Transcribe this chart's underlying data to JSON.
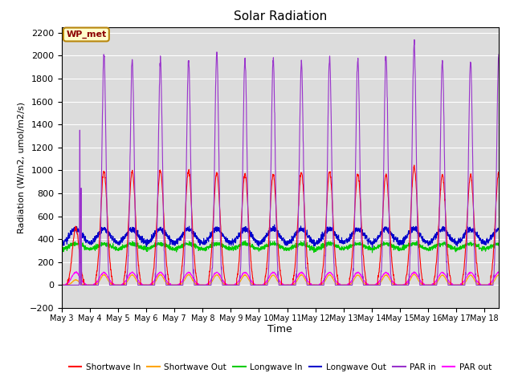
{
  "title": "Solar Radiation",
  "xlabel": "Time",
  "ylabel": "Radiation (W/m2, umol/m2/s)",
  "ylim": [
    -200,
    2250
  ],
  "xlim": [
    0,
    15.5
  ],
  "bg_color": "#dcdcdc",
  "fig_color": "#ffffff",
  "annotation_text": "WP_met",
  "annotation_color": "#8B0000",
  "annotation_bg": "#FFFFCC",
  "annotation_border": "#B8860B",
  "x_tick_labels": [
    "May 3",
    "May 4",
    "May 5",
    "May 6",
    "May 7",
    "May 8",
    "May 9",
    "May 10",
    "May 11",
    "May 12",
    "May 13",
    "May 14",
    "May 15",
    "May 16",
    "May 17",
    "May 18"
  ],
  "num_days": 16,
  "shortwave_in_color": "#FF0000",
  "shortwave_out_color": "#FFA500",
  "longwave_in_color": "#00CC00",
  "longwave_out_color": "#0000CC",
  "par_in_color": "#9932CC",
  "par_out_color": "#FF00FF",
  "legend_entries": [
    "Shortwave In",
    "Shortwave Out",
    "Longwave In",
    "Longwave Out",
    "PAR in",
    "PAR out"
  ],
  "yticks": [
    -200,
    0,
    200,
    400,
    600,
    800,
    1000,
    1200,
    1400,
    1600,
    1800,
    2000,
    2200
  ]
}
